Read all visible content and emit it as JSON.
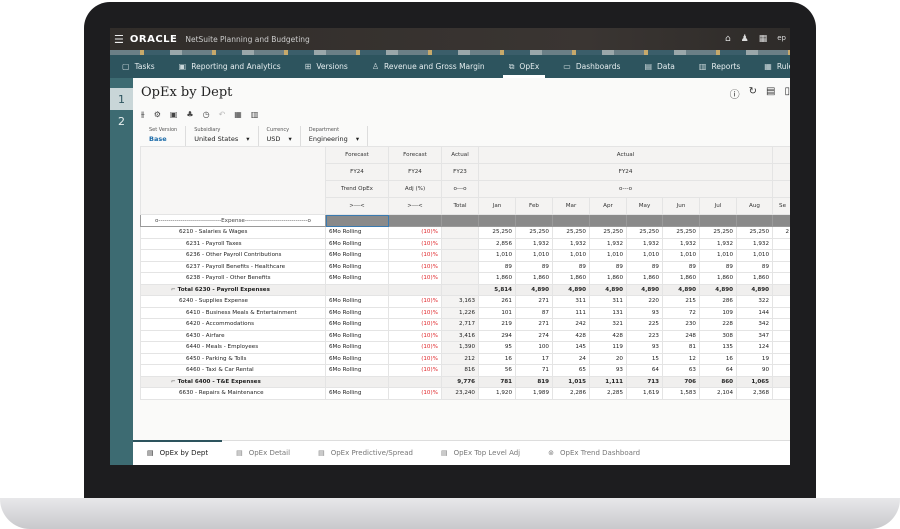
{
  "app": {
    "brand": "ORACLE",
    "product": "NetSuite Planning and Budgeting",
    "user": "ep"
  },
  "nav": [
    {
      "label": "Tasks",
      "icon": "clipboard-icon"
    },
    {
      "label": "Reporting and Analytics",
      "icon": "report-icon"
    },
    {
      "label": "Versions",
      "icon": "versions-icon"
    },
    {
      "label": "Revenue and Gross Margin",
      "icon": "revenue-icon"
    },
    {
      "label": "OpEx",
      "icon": "opex-icon",
      "active": true
    },
    {
      "label": "Dashboards",
      "icon": "dashboard-icon"
    },
    {
      "label": "Data",
      "icon": "data-icon"
    },
    {
      "label": "Reports",
      "icon": "reports-icon"
    },
    {
      "label": "Rules",
      "icon": "rules-icon"
    }
  ],
  "rail": [
    "1",
    "2"
  ],
  "page": {
    "title": "OpEx by Dept"
  },
  "pov": [
    {
      "label": "Set Version",
      "value": "Base"
    },
    {
      "label": "Subsidiary",
      "value": "United States"
    },
    {
      "label": "Currency",
      "value": "USD"
    },
    {
      "label": "Department",
      "value": "Engineering"
    }
  ],
  "grid": {
    "header_rows": [
      [
        "Forecast",
        "Forecast",
        "Actual",
        "Actual"
      ],
      [
        "FY24",
        "FY24",
        "FY23",
        "FY24"
      ],
      [
        "Trend OpEx",
        "Adj (%)",
        "o---o",
        "o---o"
      ],
      [
        ">---<",
        ">---<",
        "Total",
        "Jan",
        "Feb",
        "Mar",
        "Apr",
        "May",
        "Jun",
        "Jul",
        "Aug",
        "Se"
      ]
    ],
    "expense_label": "o-------------------------------Expense-------------------------------o",
    "rows": [
      {
        "label": "6210 - Salaries & Wages",
        "lvl": 1,
        "trend": "6Mo Rolling",
        "adj": "(10)%",
        "total": "",
        "m": [
          "25,250",
          "25,250",
          "25,250",
          "25,250",
          "25,250",
          "25,250",
          "25,250",
          "25,250",
          "2"
        ]
      },
      {
        "label": "6231 - Payroll Taxes",
        "lvl": 2,
        "trend": "6Mo Rolling",
        "adj": "(10)%",
        "total": "",
        "m": [
          "2,856",
          "1,932",
          "1,932",
          "1,932",
          "1,932",
          "1,932",
          "1,932",
          "1,932",
          ""
        ]
      },
      {
        "label": "6236 - Other Payroll Contributions",
        "lvl": 2,
        "trend": "6Mo Rolling",
        "adj": "(10)%",
        "total": "",
        "m": [
          "1,010",
          "1,010",
          "1,010",
          "1,010",
          "1,010",
          "1,010",
          "1,010",
          "1,010",
          ""
        ]
      },
      {
        "label": "6237 - Payroll Benefits - Healthcare",
        "lvl": 2,
        "trend": "6Mo Rolling",
        "adj": "(10)%",
        "total": "",
        "m": [
          "89",
          "89",
          "89",
          "89",
          "89",
          "89",
          "89",
          "89",
          ""
        ]
      },
      {
        "label": "6238 - Payroll - Other Benefits",
        "lvl": 2,
        "trend": "6Mo Rolling",
        "adj": "(10)%",
        "total": "",
        "m": [
          "1,860",
          "1,860",
          "1,860",
          "1,860",
          "1,860",
          "1,860",
          "1,860",
          "1,860",
          ""
        ]
      },
      {
        "label": "Total 6230 - Payroll Expenses",
        "lvl": 0,
        "trend": "",
        "adj": "",
        "total": "",
        "m": [
          "5,814",
          "4,890",
          "4,890",
          "4,890",
          "4,890",
          "4,890",
          "4,890",
          "4,890",
          ""
        ]
      },
      {
        "label": "6240 - Supplies Expense",
        "lvl": 1,
        "trend": "6Mo Rolling",
        "adj": "(10)%",
        "total": "3,163",
        "m": [
          "261",
          "271",
          "311",
          "311",
          "220",
          "215",
          "286",
          "322",
          ""
        ]
      },
      {
        "label": "6410 - Business Meals & Entertainment",
        "lvl": 2,
        "trend": "6Mo Rolling",
        "adj": "(10)%",
        "total": "1,226",
        "m": [
          "101",
          "87",
          "111",
          "131",
          "93",
          "72",
          "109",
          "144",
          ""
        ]
      },
      {
        "label": "6420 - Accommodations",
        "lvl": 2,
        "trend": "6Mo Rolling",
        "adj": "(10)%",
        "total": "2,717",
        "m": [
          "219",
          "271",
          "242",
          "321",
          "225",
          "230",
          "228",
          "342",
          ""
        ]
      },
      {
        "label": "6430 - Airfare",
        "lvl": 2,
        "trend": "6Mo Rolling",
        "adj": "(10)%",
        "total": "3,416",
        "m": [
          "294",
          "274",
          "428",
          "428",
          "223",
          "248",
          "308",
          "347",
          ""
        ]
      },
      {
        "label": "6440 - Meals - Employees",
        "lvl": 2,
        "trend": "6Mo Rolling",
        "adj": "(10)%",
        "total": "1,390",
        "m": [
          "95",
          "100",
          "145",
          "119",
          "93",
          "81",
          "135",
          "124",
          ""
        ]
      },
      {
        "label": "6450 - Parking & Tolls",
        "lvl": 2,
        "trend": "6Mo Rolling",
        "adj": "(10)%",
        "total": "212",
        "m": [
          "16",
          "17",
          "24",
          "20",
          "15",
          "12",
          "16",
          "19",
          ""
        ]
      },
      {
        "label": "6460 - Taxi & Car Rental",
        "lvl": 2,
        "trend": "6Mo Rolling",
        "adj": "(10)%",
        "total": "816",
        "m": [
          "56",
          "71",
          "65",
          "93",
          "64",
          "63",
          "64",
          "90",
          ""
        ]
      },
      {
        "label": "Total 6400 - T&E Expenses",
        "lvl": 0,
        "trend": "",
        "adj": "",
        "total": "9,776",
        "m": [
          "781",
          "819",
          "1,015",
          "1,111",
          "713",
          "706",
          "860",
          "1,065",
          ""
        ]
      },
      {
        "label": "6630 - Repairs & Maintenance",
        "lvl": 1,
        "trend": "6Mo Rolling",
        "adj": "(10)%",
        "total": "23,240",
        "m": [
          "1,920",
          "1,989",
          "2,286",
          "2,285",
          "1,619",
          "1,583",
          "2,104",
          "2,368",
          ""
        ]
      }
    ]
  },
  "bottom_tabs": [
    {
      "label": "OpEx by Dept",
      "active": true
    },
    {
      "label": "OpEx Detail"
    },
    {
      "label": "OpEx Predictive/Spread"
    },
    {
      "label": "OpEx Top Level Adj"
    },
    {
      "label": "OpEx Trend Dashboard"
    }
  ],
  "colors": {
    "nav": "#2d545e",
    "rail": "#3d6b72",
    "negative": "#e0262a",
    "link": "#1a6aa8"
  }
}
